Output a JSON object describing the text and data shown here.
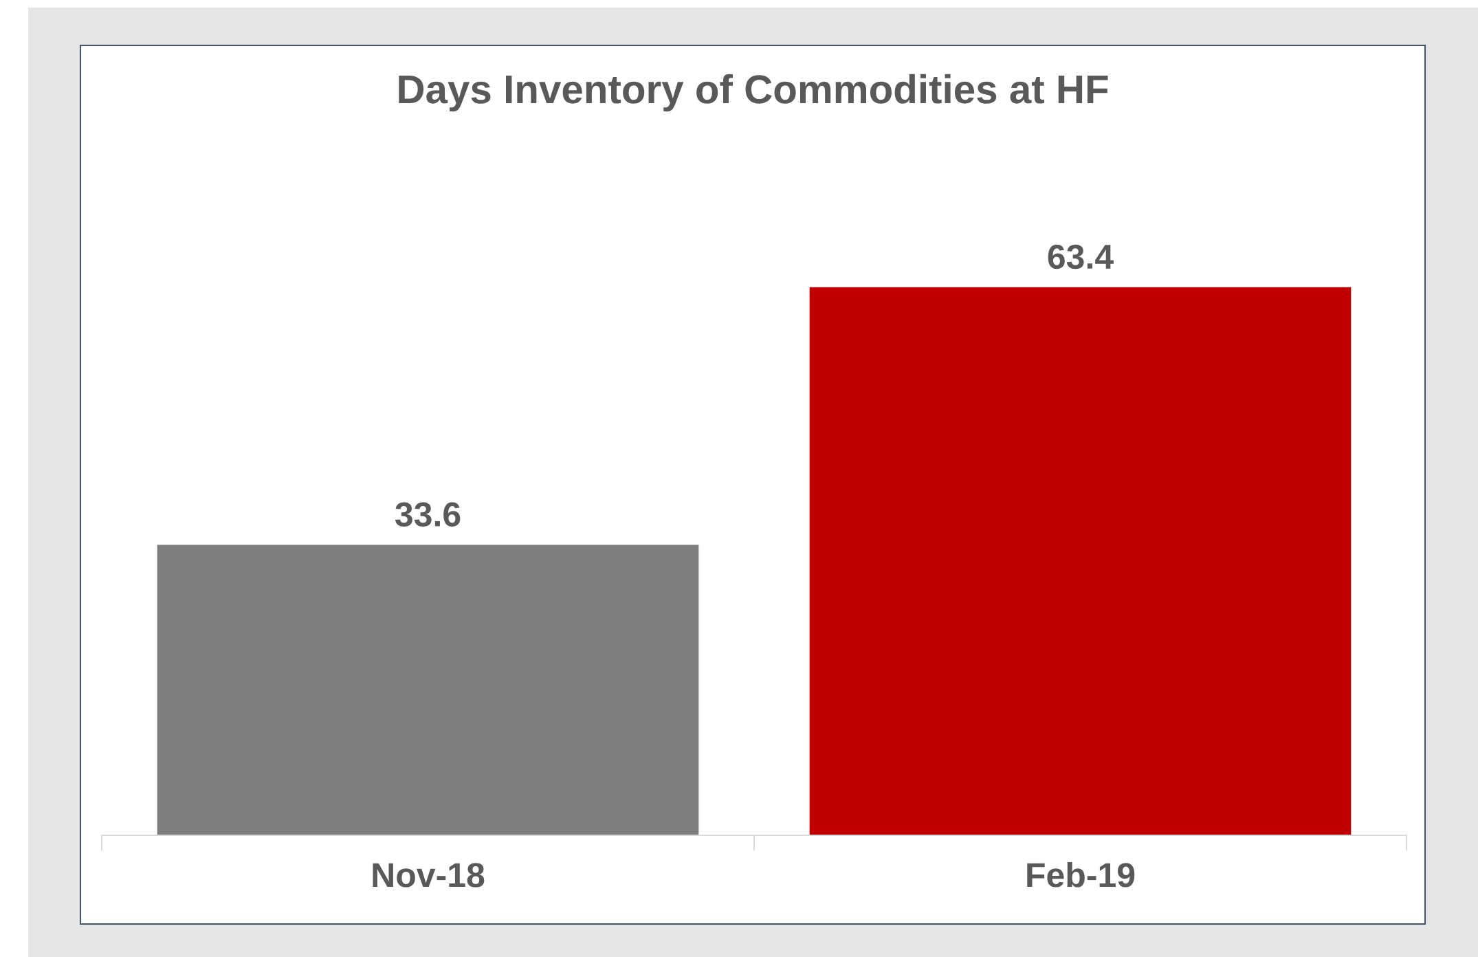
{
  "chart_data": {
    "type": "bar",
    "title": "Days Inventory of Commodities at HF",
    "categories": [
      "Nov-18",
      "Feb-19"
    ],
    "values": [
      33.6,
      63.4
    ],
    "colors": [
      "#7f7f7f",
      "#c00000"
    ],
    "data_labels": true,
    "grid": false,
    "legend": false
  }
}
